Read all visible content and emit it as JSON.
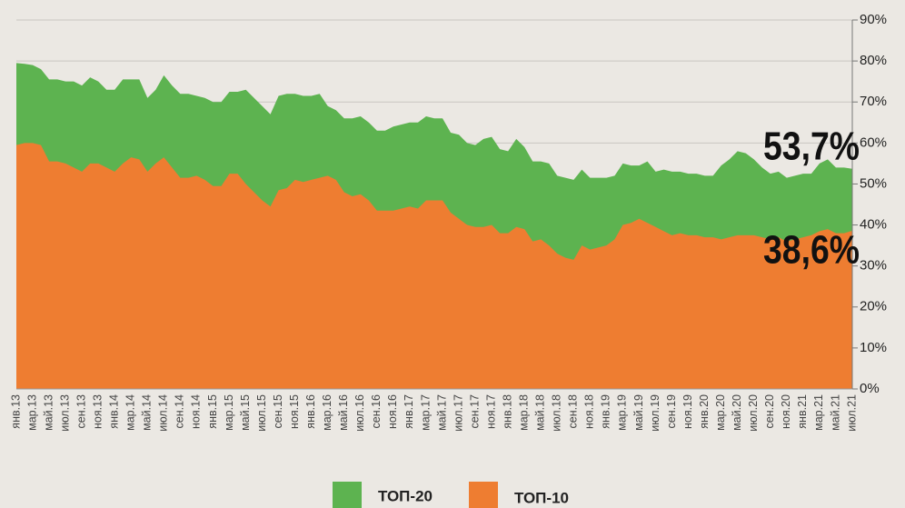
{
  "chart_data": {
    "type": "area",
    "categories": [
      "янв.13",
      null,
      "мар.13",
      null,
      "май.13",
      null,
      "июл.13",
      null,
      "сен.13",
      null,
      "ноя.13",
      null,
      "янв.14",
      null,
      "мар.14",
      null,
      "май.14",
      null,
      "июл.14",
      null,
      "сен.14",
      null,
      "ноя.14",
      null,
      "янв.15",
      null,
      "мар.15",
      null,
      "май.15",
      null,
      "июл.15",
      null,
      "сен.15",
      null,
      "ноя.15",
      null,
      "янв.16",
      null,
      "мар.16",
      null,
      "май.16",
      null,
      "июл.16",
      null,
      "сен.16",
      null,
      "ноя.16",
      null,
      "янв.17",
      null,
      "мар.17",
      null,
      "май.17",
      null,
      "июл.17",
      null,
      "сен.17",
      null,
      "ноя.17",
      null,
      "янв.18",
      null,
      "мар.18",
      null,
      "май.18",
      null,
      "июл.18",
      null,
      "сен.18",
      null,
      "ноя.18",
      null,
      "янв.19",
      null,
      "мар.19",
      null,
      "май.19",
      null,
      "июл.19",
      null,
      "сен.19",
      null,
      "ноя.19",
      null,
      "янв.20",
      null,
      "мар.20",
      null,
      "май.20",
      null,
      "июл.20",
      null,
      "сен.20",
      null,
      "ноя.20",
      null,
      "янв.21",
      null,
      "мар.21",
      null,
      "май.21",
      null,
      "июл.21"
    ],
    "series": [
      {
        "name": "ТОП-20",
        "color": "#5db350",
        "values": [
          79.5,
          79.3,
          79,
          78,
          75.5,
          75.5,
          75,
          75,
          74,
          76,
          75,
          73,
          73,
          75.5,
          75.5,
          75.5,
          71,
          73,
          76.5,
          74,
          72,
          72,
          71.5,
          71,
          70,
          70,
          72.5,
          72.5,
          73,
          71,
          69,
          67,
          71.5,
          72,
          72,
          71.5,
          71.5,
          72,
          69,
          68,
          66,
          66,
          66.5,
          65,
          63,
          63,
          64,
          64.5,
          65,
          65,
          66.5,
          66,
          66,
          62.5,
          62,
          60,
          59.5,
          61,
          61.5,
          58.5,
          58,
          61,
          59,
          55.5,
          55.5,
          55,
          52,
          51.5,
          51,
          53.5,
          51.5,
          51.5,
          51.5,
          52,
          55,
          54.5,
          54.5,
          55.5,
          53,
          53.5,
          53,
          53,
          52.5,
          52.5,
          52,
          52,
          54.5,
          56,
          58,
          57.5,
          56,
          54,
          52.5,
          53,
          51.5,
          52,
          52.5,
          52.5,
          55,
          56,
          54,
          54,
          53.7
        ],
        "value_labels": [
          null,
          null,
          null,
          null,
          null,
          null,
          null,
          null,
          null,
          null,
          null,
          null,
          null,
          null,
          null,
          null,
          null,
          null,
          null,
          null,
          null,
          null,
          null,
          null,
          null,
          null,
          null,
          null,
          null,
          null,
          null,
          null,
          null,
          null,
          null,
          null,
          null,
          null,
          null,
          null,
          null,
          null,
          null,
          null,
          null,
          null,
          null,
          null,
          null,
          null,
          null,
          null,
          null,
          null,
          null,
          null,
          null,
          null,
          null,
          null,
          null,
          null,
          null,
          null,
          null,
          null,
          null,
          null,
          null,
          null,
          null,
          null,
          null,
          null,
          null,
          null,
          null,
          null,
          null,
          null,
          null,
          null,
          null,
          null,
          null,
          null,
          null,
          null,
          null,
          null,
          null,
          null,
          null,
          null,
          null,
          null,
          null,
          null,
          null,
          null,
          null,
          null,
          "53,7%"
        ]
      },
      {
        "name": "ТОП-10",
        "color": "#ee7d31",
        "values": [
          59.5,
          60,
          60,
          59.5,
          55.5,
          55.5,
          55,
          54,
          53,
          55,
          55,
          54,
          53,
          55,
          56.5,
          56,
          53,
          55,
          56.5,
          54,
          51.5,
          51.5,
          52,
          51,
          49.5,
          49.5,
          52.5,
          52.5,
          50,
          48,
          46,
          44.5,
          48.5,
          49,
          51,
          50.5,
          51,
          51.5,
          52,
          51,
          48,
          47,
          47.5,
          46,
          43.5,
          43.5,
          43.5,
          44,
          44.5,
          44,
          46,
          46,
          46,
          43,
          41.5,
          40,
          39.5,
          39.5,
          40,
          38,
          38,
          39.5,
          39,
          36,
          36.5,
          35,
          33,
          32,
          31.5,
          35,
          34,
          34.5,
          35,
          36.5,
          40,
          40.5,
          41.5,
          40.5,
          39.5,
          38.5,
          37.5,
          38,
          37.5,
          37.5,
          37,
          37,
          36.5,
          37,
          37.5,
          37.5,
          37.5,
          37,
          36.5,
          37,
          36,
          36.5,
          37,
          37.5,
          38.5,
          39,
          38,
          38,
          38.6
        ],
        "value_labels": [
          null,
          null,
          null,
          null,
          null,
          null,
          null,
          null,
          null,
          null,
          null,
          null,
          null,
          null,
          null,
          null,
          null,
          null,
          null,
          null,
          null,
          null,
          null,
          null,
          null,
          null,
          null,
          null,
          null,
          null,
          null,
          null,
          null,
          null,
          null,
          null,
          null,
          null,
          null,
          null,
          null,
          null,
          null,
          null,
          null,
          null,
          null,
          null,
          null,
          null,
          null,
          null,
          null,
          null,
          null,
          null,
          null,
          null,
          null,
          null,
          null,
          null,
          null,
          null,
          null,
          null,
          null,
          null,
          null,
          null,
          null,
          null,
          null,
          null,
          null,
          null,
          null,
          null,
          null,
          null,
          null,
          null,
          null,
          null,
          null,
          null,
          null,
          null,
          null,
          null,
          null,
          null,
          null,
          null,
          null,
          null,
          null,
          null,
          null,
          null,
          null,
          null,
          "38,6%"
        ]
      }
    ],
    "ylim": [
      0,
      90
    ],
    "yticks": [
      {
        "value": 0,
        "label": "0%"
      },
      {
        "value": 10,
        "label": "10%"
      },
      {
        "value": 20,
        "label": "20%"
      },
      {
        "value": 30,
        "label": "30%"
      },
      {
        "value": 40,
        "label": "40%"
      },
      {
        "value": 50,
        "label": "50%"
      },
      {
        "value": 60,
        "label": "60%"
      },
      {
        "value": 70,
        "label": "70%"
      },
      {
        "value": 80,
        "label": "80%"
      },
      {
        "value": 90,
        "label": "90%"
      }
    ],
    "grid": true,
    "legend": "bottom"
  }
}
